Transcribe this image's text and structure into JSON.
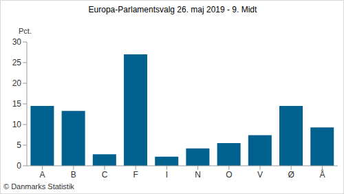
{
  "chart_data": {
    "type": "bar",
    "title": "Europa-Parlamentsvalg 26. maj 2019 - 9. Midt",
    "ylabel": "Pct.",
    "annotations": [
      "© Danmarks Statistik"
    ],
    "categories": [
      "A",
      "B",
      "C",
      "F",
      "I",
      "N",
      "O",
      "V",
      "Ø",
      "Å"
    ],
    "values": [
      14.5,
      13.3,
      2.8,
      27.0,
      2.2,
      4.2,
      5.5,
      7.4,
      14.5,
      9.3
    ],
    "color": "#00618f",
    "ylim": [
      0,
      30
    ],
    "yticks": [
      0,
      5,
      10,
      15,
      20,
      25,
      30
    ],
    "grid": false
  }
}
